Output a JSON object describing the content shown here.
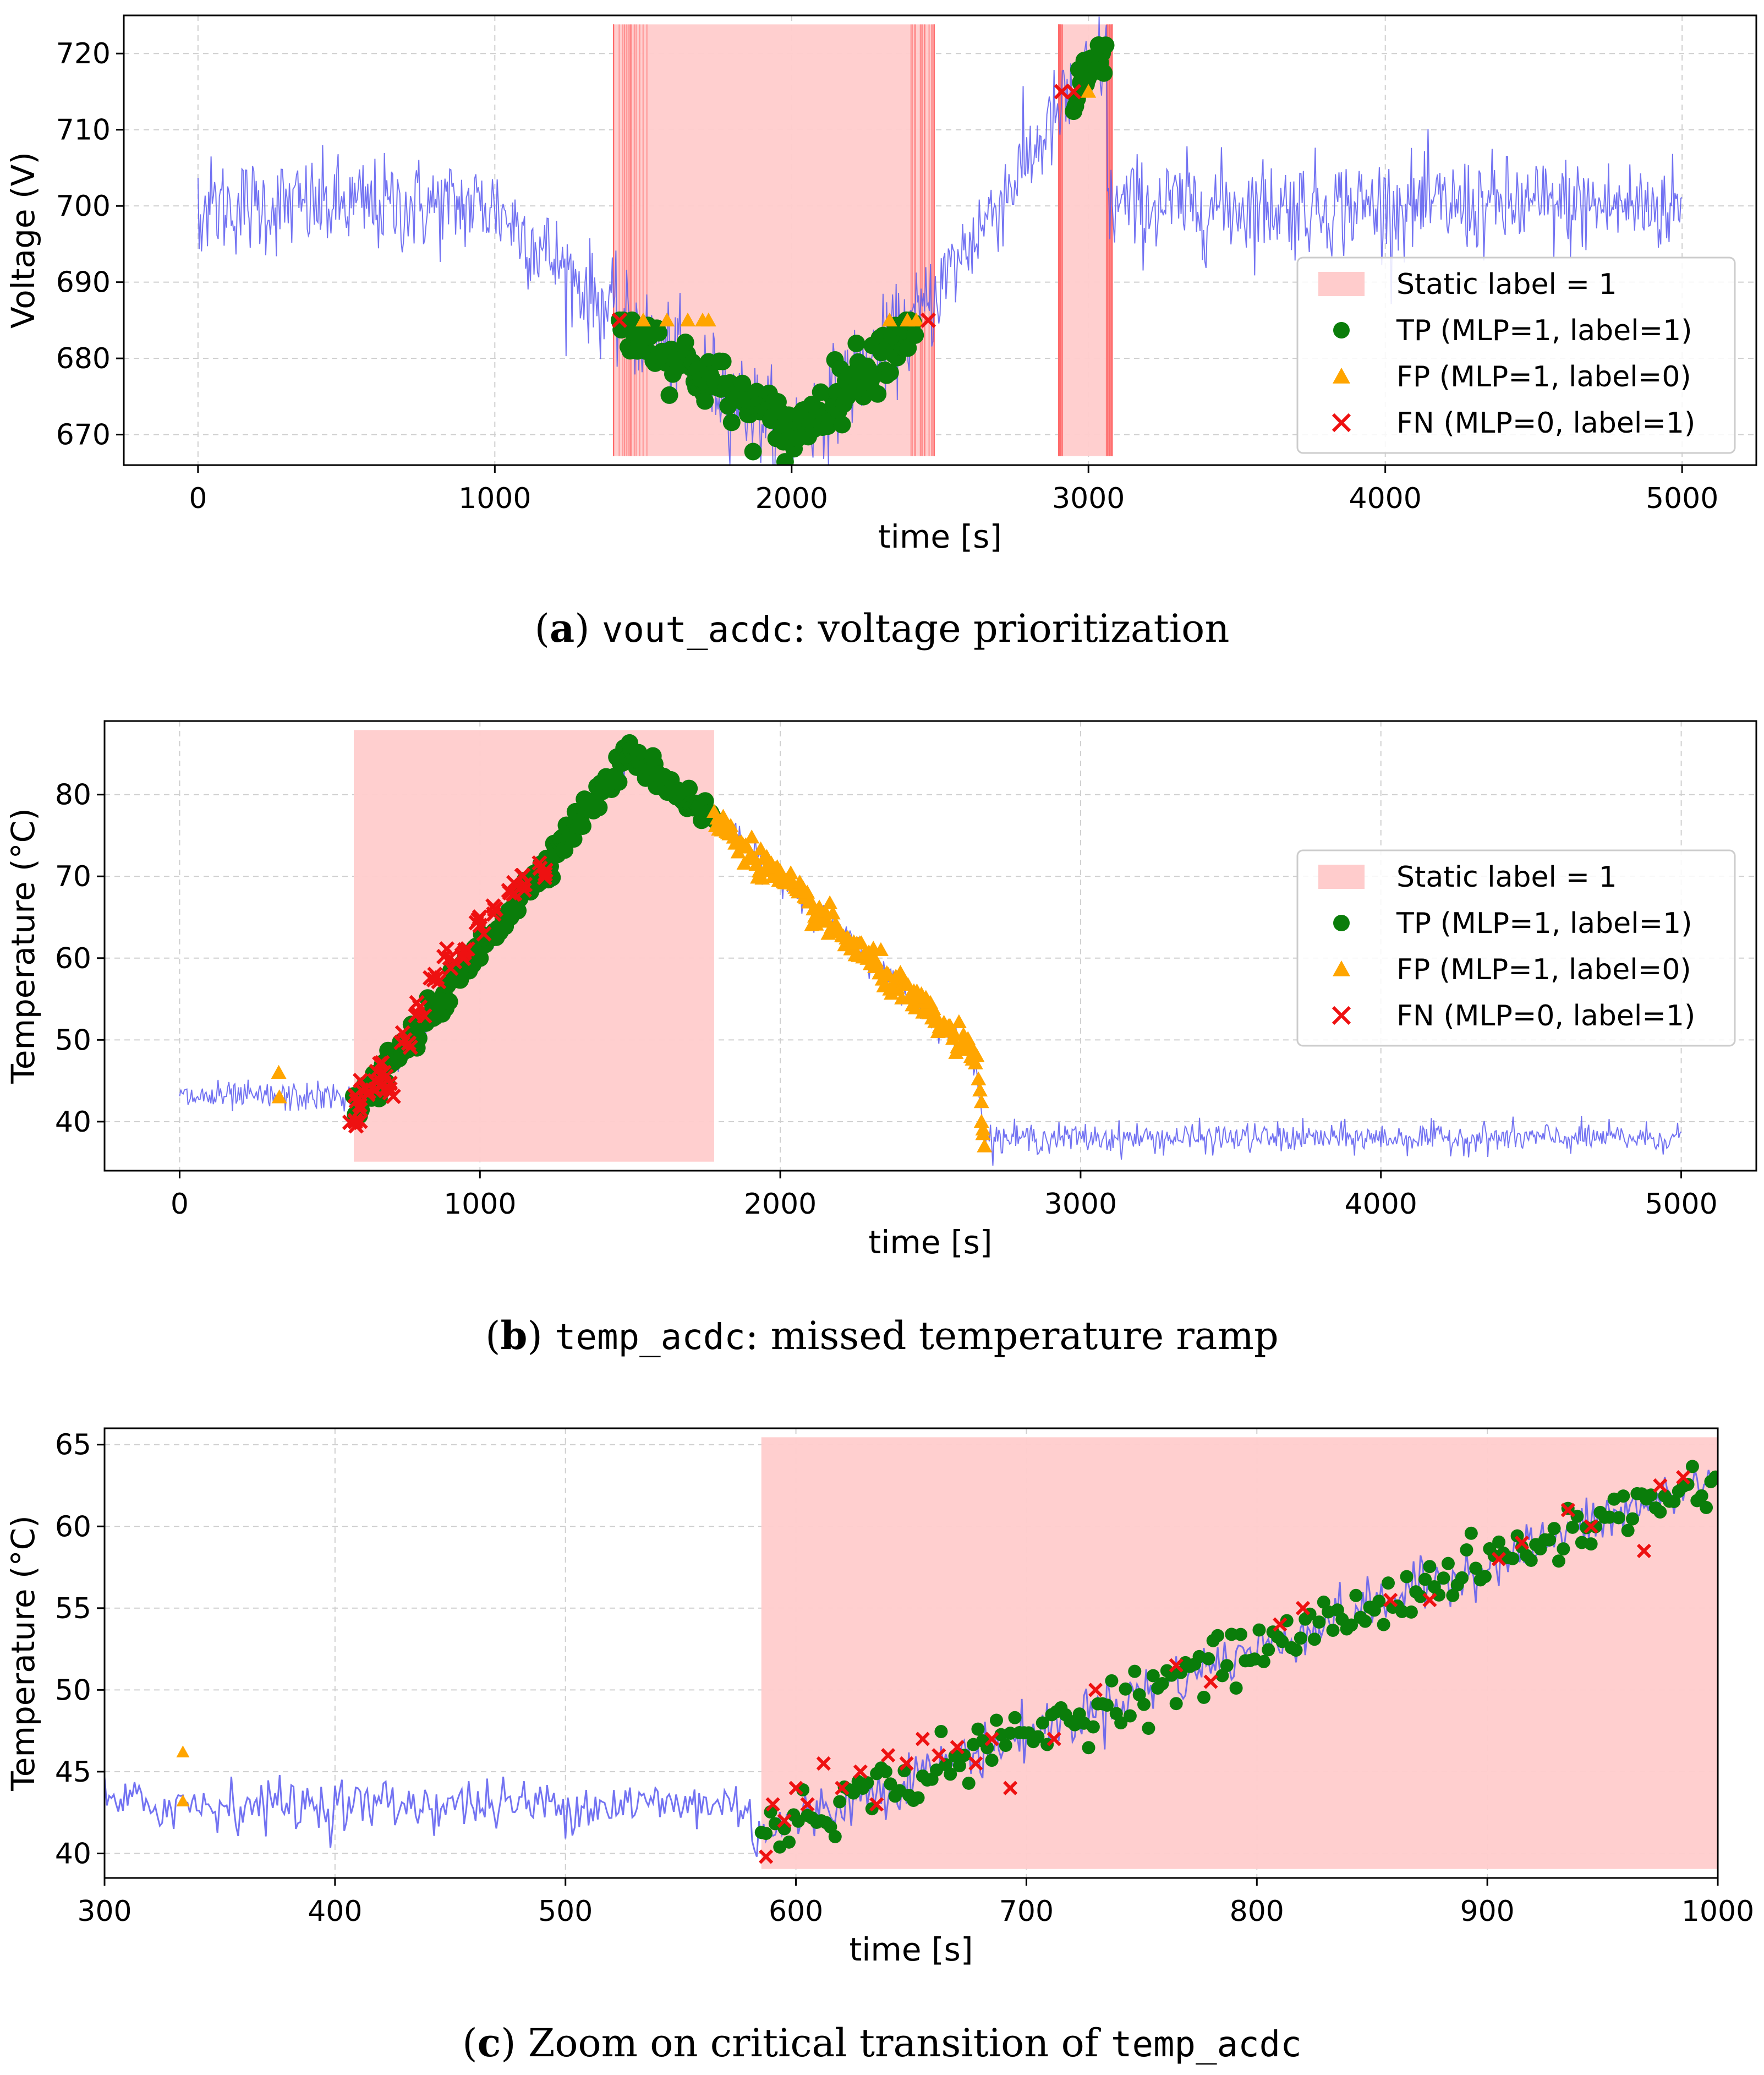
{
  "colors": {
    "signal": "#5b5bf0",
    "label_band": "#ffcccc",
    "label_line": "#ff6a6a",
    "tp": "#0a7d0a",
    "fp": "#ffa500",
    "fn": "#ee1111",
    "grid": "#cfcfcf"
  },
  "legend": {
    "static": "Static label = 1",
    "tp": "TP (MLP=1, label=1)",
    "fp": "FP (MLP=1, label=0)",
    "fn": "FN (MLP=0, label=1)"
  },
  "captions": [
    {
      "letter": "a",
      "code": "vout_acdc",
      "text": ": voltage prioritization"
    },
    {
      "letter": "b",
      "code": "temp_acdc",
      "text": ": missed temperature ramp"
    },
    {
      "letter": "c",
      "prefix": " Zoom on critical transition of ",
      "code": "temp_acdc"
    }
  ],
  "chart_data": [
    {
      "type": "line",
      "title": "",
      "xlabel": "time [s]",
      "ylabel": "Voltage (V)",
      "xlim": [
        -250,
        5250
      ],
      "ylim": [
        666,
        725
      ],
      "xticks": [
        "0",
        "1000",
        "2000",
        "3000",
        "4000",
        "5000"
      ],
      "yticks": [
        "670",
        "680",
        "690",
        "700",
        "710",
        "720"
      ],
      "legend_position": "center-right",
      "signal": {
        "x": [
          0,
          1000,
          1420,
          2000,
          2420,
          2900,
          3060,
          3060,
          5000
        ],
        "y": [
          700,
          700,
          685,
          670,
          685,
          712,
          720,
          700,
          700
        ],
        "noise_sd": 3.2
      },
      "label_regions": [
        [
          1400,
          2480
        ],
        [
          2900,
          3080
        ]
      ],
      "tp_regions": [
        [
          1420,
          2420
        ],
        [
          2950,
          3060
        ]
      ],
      "fp_points": {
        "x": [
          1500,
          1580,
          1650,
          1700,
          1720,
          2330,
          2390,
          2420,
          3000
        ],
        "y": [
          685,
          685,
          685,
          685,
          685,
          685,
          685,
          685,
          715
        ]
      },
      "fn_points": {
        "x": [
          1420,
          2460,
          2910,
          2950
        ],
        "y": [
          685,
          685,
          715,
          715
        ]
      }
    },
    {
      "type": "line",
      "title": "",
      "xlabel": "time [s]",
      "ylabel": "Temperature (°C)",
      "xlim": [
        -250,
        5250
      ],
      "ylim": [
        34,
        89
      ],
      "xticks": [
        "0",
        "1000",
        "2000",
        "3000",
        "4000",
        "5000"
      ],
      "yticks": [
        "40",
        "50",
        "60",
        "70",
        "80"
      ],
      "legend_position": "center-right",
      "signal": {
        "x": [
          0,
          580,
          580,
          1500,
          1780,
          2650,
          2680,
          5000
        ],
        "y": [
          43,
          43,
          41,
          85,
          77,
          48,
          38,
          38
        ],
        "noise_sd": 0.9
      },
      "label_regions": [
        [
          580,
          1780
        ]
      ],
      "tp_regions": [
        [
          580,
          1780
        ]
      ],
      "fp_regions": [
        [
          1780,
          2680
        ]
      ],
      "fp_points": {
        "x": [
          330,
          332,
          2670,
          2675
        ],
        "y": [
          46,
          43,
          40,
          38.5
        ]
      },
      "fn_points": {
        "x": [
          585,
          600,
          620,
          650,
          680,
          700,
          750,
          800,
          850,
          900,
          950,
          1000,
          1050,
          1100,
          1150,
          1200
        ],
        "y": [
          40,
          42,
          44,
          45,
          46,
          44,
          50,
          54,
          58,
          60,
          61,
          64,
          66,
          68,
          69,
          71
        ]
      }
    },
    {
      "type": "line",
      "title": "",
      "xlabel": "time [s]",
      "ylabel": "Temperature (°C)",
      "xlim": [
        300,
        1000
      ],
      "ylim": [
        38.5,
        66
      ],
      "xticks": [
        "300",
        "400",
        "500",
        "600",
        "700",
        "800",
        "900",
        "1000"
      ],
      "yticks": [
        "40",
        "45",
        "50",
        "55",
        "60",
        "65"
      ],
      "signal": {
        "x": [
          300,
          580,
          580,
          1000
        ],
        "y": [
          43,
          43,
          41,
          63
        ],
        "noise_sd": 0.8
      },
      "label_regions": [
        [
          585,
          1000
        ]
      ],
      "tp_regions": [
        [
          585,
          1000
        ]
      ],
      "fp_points": {
        "x": [
          334,
          334
        ],
        "y": [
          46.2,
          43.2
        ]
      },
      "fn_points": {
        "x": [
          587,
          590,
          595,
          600,
          605,
          612,
          620,
          628,
          635,
          640,
          648,
          655,
          662,
          670,
          678,
          685,
          693,
          712,
          730,
          765,
          780,
          810,
          820,
          858,
          875,
          905,
          915,
          935,
          945,
          968,
          975,
          985
        ],
        "y": [
          39.8,
          43,
          42,
          44,
          43,
          45.5,
          44,
          45,
          43,
          46,
          45.5,
          47,
          46,
          46.5,
          45.5,
          47,
          44,
          47,
          50,
          51.5,
          50.5,
          54,
          55,
          55.5,
          55.5,
          58,
          59,
          61,
          60,
          58.5,
          62.5,
          63
        ]
      }
    }
  ]
}
